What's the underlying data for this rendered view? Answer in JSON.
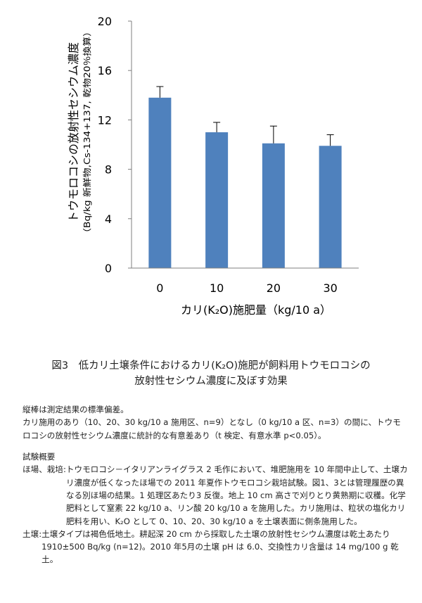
{
  "chart_data": {
    "type": "bar",
    "categories": [
      "0",
      "10",
      "20",
      "30"
    ],
    "values": [
      13.8,
      11.0,
      10.1,
      9.9
    ],
    "error": [
      0.9,
      0.8,
      1.4,
      0.9
    ],
    "ylim": [
      0,
      20
    ],
    "yticks": [
      "0",
      "4",
      "8",
      "12",
      "16",
      "20"
    ],
    "ylabel_main": "トウモロコシの放射性セシウム濃度",
    "ylabel_sub": "（Bq/kg 新鮮物,Cs-134+137, 乾物20％換算）",
    "xlabel": "カリ(K₂O)施肥量（kg/10 a）",
    "bar_color": "#4f81bd",
    "grid": false,
    "legend": "none"
  },
  "caption": {
    "line1": "図3　低カリ土壌条件におけるカリ(K₂O)施肥が飼料用トウモロコシの",
    "line2": "放射性セシウム濃度に及ぼす効果"
  },
  "notes": {
    "line1": "縦棒は測定結果の標準偏差。",
    "line2": "カリ施用のあり（10、20、30 kg/10 a 施用区、n=9）となし（0 kg/10 a 区、n=3）の間に、トウモロコシの放射性セシウム濃度に統計的な有意差あり（t 検定、有意水準 p<0.05）。"
  },
  "overview": {
    "title": "試験概要",
    "field_label": "ほ場、栽培:",
    "field_text": "トウモロコシ－イタリアンライグラス 2 毛作において、堆肥施用を 10 年間中止して、土壌カリ濃度が低くなったほ場での 2011 年夏作トウモロコシ栽培試験。図1、3とは管理履歴の異なる別ほ場の結果。1 処理区あたり3 反復。地上 10 cm 高さで刈りとり黄熟期に収穫。化学肥料として窒素 22 kg/10 a、リン酸 20 kg/10 a を施用した。カリ施用は、粒状の塩化カリ肥料を用い、K₂O として 0、10、20、30 kg/10 a を土壌表面に側条施用した。",
    "soil_label": "土壌:",
    "soil_text": "土壌タイプは褐色低地土。耕起深 20 cm から採取した土壌の放射性セシウム濃度は乾土あたり 1910±500 Bq/kg (n=12)。2010 年5月の土壌 pH は 6.0、交換性カリ含量は 14 mg/100 g 乾土。"
  }
}
